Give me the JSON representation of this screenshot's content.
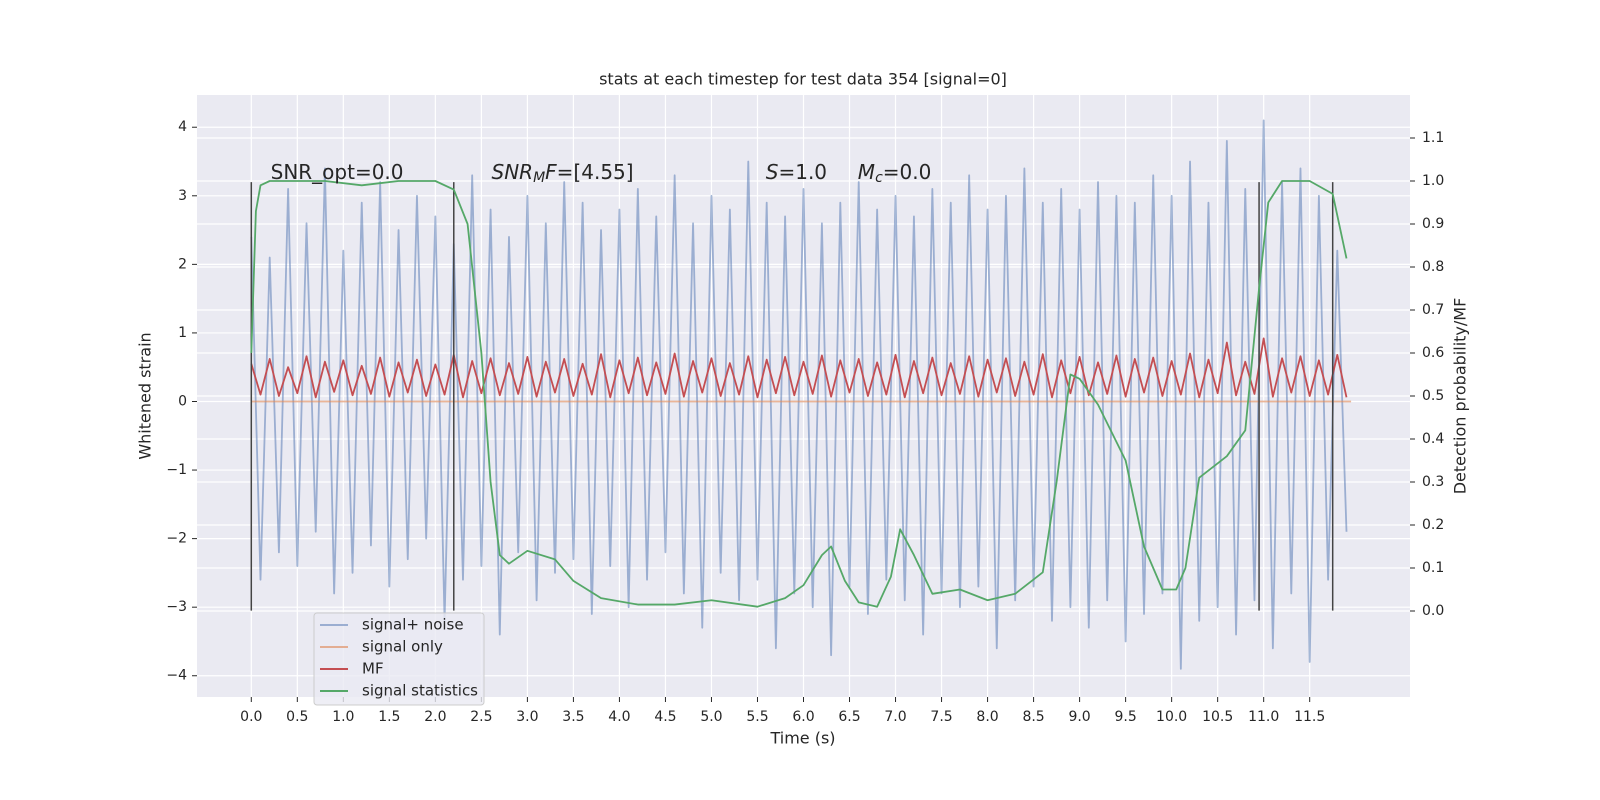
{
  "chart_data": {
    "type": "line",
    "title": "stats at each timestep for test data 354 [signal=0]",
    "xlabel": "Time (s)",
    "ylabel": "Whitened strain",
    "y2label": "Detection probability/MF",
    "xlim": [
      -0.59,
      12.59
    ],
    "ylim": [
      -4.31,
      4.47
    ],
    "y2lim": [
      -0.2,
      1.2
    ],
    "xticks": [
      {
        "value": 0,
        "label": "0.0"
      },
      0.5,
      {
        "value": 1,
        "label": "1.0"
      },
      1.5,
      {
        "value": 2,
        "label": "2.0"
      },
      2.5,
      {
        "value": 3,
        "label": "3.0"
      },
      3.5,
      {
        "value": 4,
        "label": "4.0"
      },
      4.5,
      {
        "value": 5,
        "label": "5.0"
      },
      5.5,
      {
        "value": 6,
        "label": "6.0"
      },
      6.5,
      {
        "value": 7,
        "label": "7.0"
      },
      7.5,
      {
        "value": 8,
        "label": "8.0"
      },
      8.5,
      {
        "value": 9,
        "label": "9.0"
      },
      9.5,
      {
        "value": 10,
        "label": "10.0"
      },
      10.5,
      {
        "value": 11,
        "label": "11.0"
      },
      11.5
    ],
    "yticks": [
      {
        "value": -4,
        "label": "−4"
      },
      {
        "value": -3,
        "label": "−3"
      },
      {
        "value": -2,
        "label": "−2"
      },
      {
        "value": -1,
        "label": "−1"
      },
      0,
      1,
      2,
      3,
      4
    ],
    "y2ticks": [
      {
        "value": 0,
        "label": "0.0"
      },
      0.1,
      0.2,
      0.3,
      0.4,
      0.5,
      0.6,
      0.7,
      0.8,
      0.9,
      {
        "value": 1,
        "label": "1.0"
      },
      1.1
    ],
    "grid": true,
    "legend": "lower left",
    "x": [
      0,
      0.1,
      0.2,
      0.3,
      0.4,
      0.5,
      0.6,
      0.7,
      0.8,
      0.9,
      1.0,
      1.1,
      1.2,
      1.3,
      1.4,
      1.5,
      1.6,
      1.7,
      1.8,
      1.9,
      2.0,
      2.1,
      2.2,
      2.3,
      2.4,
      2.5,
      2.6,
      2.7,
      2.8,
      2.9,
      3.0,
      3.1,
      3.2,
      3.3,
      3.4,
      3.5,
      3.6,
      3.7,
      3.8,
      3.9,
      4.0,
      4.1,
      4.2,
      4.3,
      4.4,
      4.5,
      4.6,
      4.7,
      4.8,
      4.9,
      5.0,
      5.1,
      5.2,
      5.3,
      5.4,
      5.5,
      5.6,
      5.7,
      5.8,
      5.9,
      6.0,
      6.1,
      6.2,
      6.3,
      6.4,
      6.5,
      6.6,
      6.7,
      6.8,
      6.9,
      7.0,
      7.1,
      7.2,
      7.3,
      7.4,
      7.5,
      7.6,
      7.7,
      7.8,
      7.9,
      8.0,
      8.1,
      8.2,
      8.3,
      8.4,
      8.5,
      8.6,
      8.7,
      8.8,
      8.9,
      9.0,
      9.1,
      9.2,
      9.3,
      9.4,
      9.5,
      9.6,
      9.7,
      9.8,
      9.9,
      10.0,
      10.1,
      10.2,
      10.3,
      10.4,
      10.5,
      10.6,
      10.7,
      10.8,
      10.9,
      11.0,
      11.1,
      11.2,
      11.3,
      11.4,
      11.5,
      11.6,
      11.7,
      11.8,
      11.9
    ],
    "series": [
      {
        "name": "signal+ noise",
        "color": "#4c72b0",
        "opacity": 0.5,
        "values": [
          2.4,
          -2.6,
          2.1,
          -2.2,
          3.1,
          -2.4,
          2.6,
          -1.9,
          3.4,
          -2.8,
          2.2,
          -2.5,
          2.9,
          -2.1,
          3.2,
          -2.7,
          2.5,
          -2.3,
          3.0,
          -2.0,
          2.7,
          -3.2,
          2.3,
          -2.6,
          3.3,
          -2.4,
          2.8,
          -3.4,
          2.4,
          -2.2,
          3.0,
          -2.9,
          2.6,
          -2.5,
          3.2,
          -2.3,
          2.9,
          -3.1,
          2.5,
          -2.4,
          2.8,
          -3.0,
          3.1,
          -2.6,
          2.7,
          -2.2,
          3.3,
          -2.8,
          2.6,
          -3.3,
          3.0,
          -2.5,
          2.8,
          -2.9,
          3.5,
          -2.6,
          2.9,
          -3.6,
          2.7,
          -2.8,
          3.1,
          -3.0,
          2.6,
          -3.7,
          2.9,
          -2.7,
          3.2,
          -3.1,
          2.8,
          -2.6,
          3.0,
          -2.9,
          2.7,
          -3.4,
          3.1,
          -2.8,
          2.9,
          -3.0,
          3.3,
          -2.7,
          2.8,
          -3.6,
          3.0,
          -2.9,
          3.4,
          -2.7,
          2.9,
          -3.2,
          3.1,
          -3.0,
          2.8,
          -3.3,
          3.2,
          -2.9,
          3.0,
          -3.5,
          2.9,
          -3.1,
          3.3,
          -2.8,
          3.0,
          -3.9,
          3.5,
          -3.2,
          2.9,
          -3.0,
          3.8,
          -3.4,
          3.1,
          -2.9,
          4.1,
          -3.6,
          3.2,
          -2.8,
          3.4,
          -3.8,
          3.0,
          -2.6,
          2.2,
          -1.9
        ]
      },
      {
        "name": "signal only",
        "color": "#dd8452",
        "opacity": 0.6,
        "x": [
          0,
          11.95
        ],
        "values": [
          0,
          0
        ]
      },
      {
        "name": "MF",
        "color": "#c44e52",
        "opacity": 1,
        "values": [
          0.55,
          0.1,
          0.62,
          0.08,
          0.5,
          0.12,
          0.66,
          0.06,
          0.58,
          0.14,
          0.6,
          0.09,
          0.52,
          0.11,
          0.64,
          0.07,
          0.57,
          0.13,
          0.61,
          0.08,
          0.54,
          0.1,
          0.68,
          0.06,
          0.59,
          0.12,
          0.63,
          0.09,
          0.56,
          0.11,
          0.65,
          0.07,
          0.58,
          0.13,
          0.62,
          0.08,
          0.55,
          0.1,
          0.69,
          0.06,
          0.6,
          0.12,
          0.64,
          0.09,
          0.57,
          0.11,
          0.7,
          0.07,
          0.59,
          0.13,
          0.63,
          0.08,
          0.56,
          0.1,
          0.66,
          0.06,
          0.61,
          0.12,
          0.65,
          0.09,
          0.58,
          0.11,
          0.67,
          0.07,
          0.6,
          0.13,
          0.62,
          0.08,
          0.57,
          0.1,
          0.68,
          0.06,
          0.59,
          0.12,
          0.64,
          0.09,
          0.56,
          0.11,
          0.66,
          0.07,
          0.61,
          0.13,
          0.63,
          0.08,
          0.58,
          0.1,
          0.69,
          0.06,
          0.6,
          0.12,
          0.65,
          0.09,
          0.57,
          0.11,
          0.67,
          0.07,
          0.62,
          0.13,
          0.64,
          0.08,
          0.59,
          0.1,
          0.7,
          0.06,
          0.61,
          0.12,
          0.86,
          0.09,
          0.58,
          0.11,
          0.92,
          0.07,
          0.63,
          0.13,
          0.66,
          0.08,
          0.6,
          0.1,
          0.68,
          0.06
        ]
      },
      {
        "name": "signal statistics",
        "color": "#55a868",
        "opacity": 1,
        "axis": "y2",
        "x": [
          0,
          0.05,
          0.1,
          0.2,
          0.4,
          0.8,
          1.2,
          1.6,
          2.0,
          2.2,
          2.35,
          2.5,
          2.6,
          2.7,
          2.8,
          3.0,
          3.3,
          3.5,
          3.8,
          4.2,
          4.6,
          5.0,
          5.5,
          5.8,
          6.0,
          6.2,
          6.3,
          6.45,
          6.6,
          6.8,
          6.95,
          7.05,
          7.2,
          7.4,
          7.7,
          8.0,
          8.3,
          8.6,
          8.75,
          8.9,
          9.0,
          9.2,
          9.5,
          9.7,
          9.9,
          10.05,
          10.15,
          10.3,
          10.6,
          10.8,
          10.95,
          11.05,
          11.2,
          11.5,
          11.75,
          11.9
        ],
        "values": [
          0.6,
          0.93,
          0.99,
          1.0,
          1.0,
          1.0,
          0.99,
          1.0,
          1.0,
          0.98,
          0.9,
          0.6,
          0.3,
          0.13,
          0.11,
          0.14,
          0.12,
          0.07,
          0.03,
          0.015,
          0.015,
          0.025,
          0.01,
          0.03,
          0.06,
          0.13,
          0.15,
          0.07,
          0.02,
          0.01,
          0.08,
          0.19,
          0.13,
          0.04,
          0.05,
          0.025,
          0.04,
          0.09,
          0.3,
          0.55,
          0.54,
          0.48,
          0.35,
          0.15,
          0.05,
          0.05,
          0.1,
          0.31,
          0.36,
          0.42,
          0.75,
          0.95,
          1.0,
          1.0,
          0.97,
          0.82
        ]
      }
    ],
    "vlines": {
      "x": [
        0,
        2.2,
        10.95,
        11.75
      ],
      "ymin": -3.05,
      "ymax": 3.2,
      "color": "#444"
    },
    "annotations": [
      {
        "x": 0.21,
        "y": 3.33,
        "parts": [
          {
            "text": "SNR_opt=0.0"
          }
        ]
      },
      {
        "x": 2.61,
        "y": 3.33,
        "parts": [
          {
            "text": "SNR",
            "style": "italic"
          },
          {
            "text": "M",
            "style": "sub"
          },
          {
            "text": "F",
            "style": "italic"
          },
          {
            "text": "=[4.55]"
          }
        ]
      },
      {
        "x": 5.59,
        "y": 3.33,
        "parts": [
          {
            "text": "S",
            "style": "italic"
          },
          {
            "text": "=1.0"
          }
        ]
      },
      {
        "x": 6.59,
        "y": 3.33,
        "parts": [
          {
            "text": "M",
            "style": "italic"
          },
          {
            "text": "c",
            "style": "sub"
          },
          {
            "text": "=0.0"
          }
        ]
      }
    ]
  }
}
